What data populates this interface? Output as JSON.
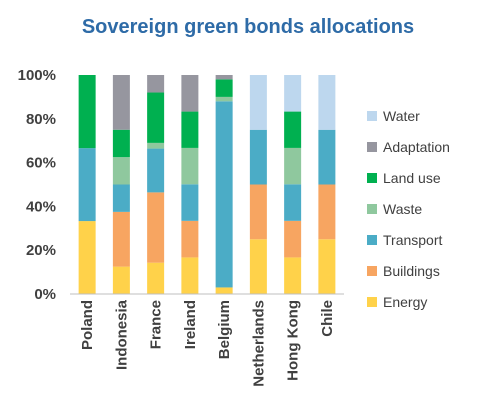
{
  "chart_data": {
    "type": "bar",
    "stacked": true,
    "title": "Sovereign green bonds allocations",
    "categories": [
      "Poland",
      "Indonesia",
      "France",
      "Ireland",
      "Belgium",
      "Netherlands",
      "Hong Kong",
      "Chile"
    ],
    "yticks": [
      "0%",
      "20%",
      "40%",
      "60%",
      "80%",
      "100%"
    ],
    "ylim": [
      0,
      100
    ],
    "legend_position": "right",
    "grid": false,
    "series": [
      {
        "name": "Energy",
        "color": "#ffd24a",
        "values": [
          33.3,
          12.5,
          14.3,
          16.7,
          3,
          25,
          16.7,
          25
        ]
      },
      {
        "name": "Buildings",
        "color": "#f7a561",
        "values": [
          0,
          25,
          32.1,
          16.7,
          0,
          25,
          16.7,
          25
        ]
      },
      {
        "name": "Transport",
        "color": "#4bacc6",
        "values": [
          33.3,
          12.5,
          20,
          16.7,
          85,
          25,
          16.7,
          25
        ]
      },
      {
        "name": "Waste",
        "color": "#8fc89e",
        "values": [
          0,
          12.5,
          2.6,
          16.6,
          2,
          0,
          16.6,
          0
        ]
      },
      {
        "name": "Land use",
        "color": "#00b050",
        "values": [
          33.4,
          12.5,
          23,
          16.6,
          8,
          0,
          16.6,
          0
        ]
      },
      {
        "name": "Adaptation",
        "color": "#96969f",
        "values": [
          0,
          25,
          8,
          16.7,
          2,
          0,
          0,
          0
        ]
      },
      {
        "name": "Water",
        "color": "#bdd7ee",
        "values": [
          0,
          0,
          0,
          0,
          0,
          25,
          16.7,
          25
        ]
      }
    ]
  }
}
